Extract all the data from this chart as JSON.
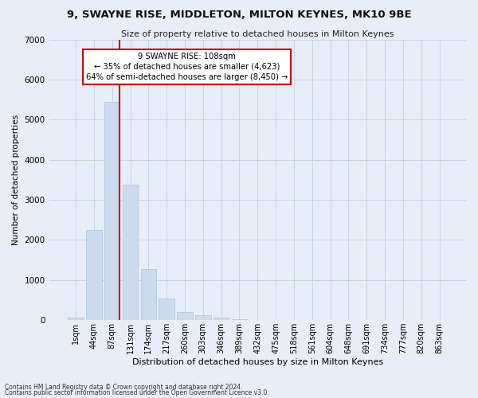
{
  "title1": "9, SWAYNE RISE, MIDDLETON, MILTON KEYNES, MK10 9BE",
  "title2": "Size of property relative to detached houses in Milton Keynes",
  "xlabel": "Distribution of detached houses by size in Milton Keynes",
  "ylabel": "Number of detached properties",
  "footnote1": "Contains HM Land Registry data © Crown copyright and database right 2024.",
  "footnote2": "Contains public sector information licensed under the Open Government Licence v3.0.",
  "annotation_line1": "9 SWAYNE RISE: 108sqm",
  "annotation_line2": "← 35% of detached houses are smaller (4,623)",
  "annotation_line3": "64% of semi-detached houses are larger (8,450) →",
  "bar_color": "#ccdcee",
  "bar_edge_color": "#aac4de",
  "vline_color": "#cc0000",
  "annotation_box_color": "#ffffff",
  "annotation_box_edge": "#cc0000",
  "grid_color": "#c8d4e4",
  "bg_color": "#e8eef8",
  "categories": [
    "1sqm",
    "44sqm",
    "87sqm",
    "131sqm",
    "174sqm",
    "217sqm",
    "260sqm",
    "303sqm",
    "346sqm",
    "389sqm",
    "432sqm",
    "475sqm",
    "518sqm",
    "561sqm",
    "604sqm",
    "648sqm",
    "691sqm",
    "734sqm",
    "777sqm",
    "820sqm",
    "863sqm"
  ],
  "values": [
    55,
    2250,
    5450,
    3380,
    1280,
    530,
    200,
    130,
    55,
    18,
    5,
    2,
    0,
    0,
    0,
    0,
    0,
    0,
    0,
    0,
    0
  ],
  "ylim": [
    0,
    7000
  ],
  "yticks": [
    0,
    1000,
    2000,
    3000,
    4000,
    5000,
    6000,
    7000
  ],
  "vline_x_idx": 2.42,
  "figwidth": 6.0,
  "figheight": 5.0,
  "dpi": 100
}
